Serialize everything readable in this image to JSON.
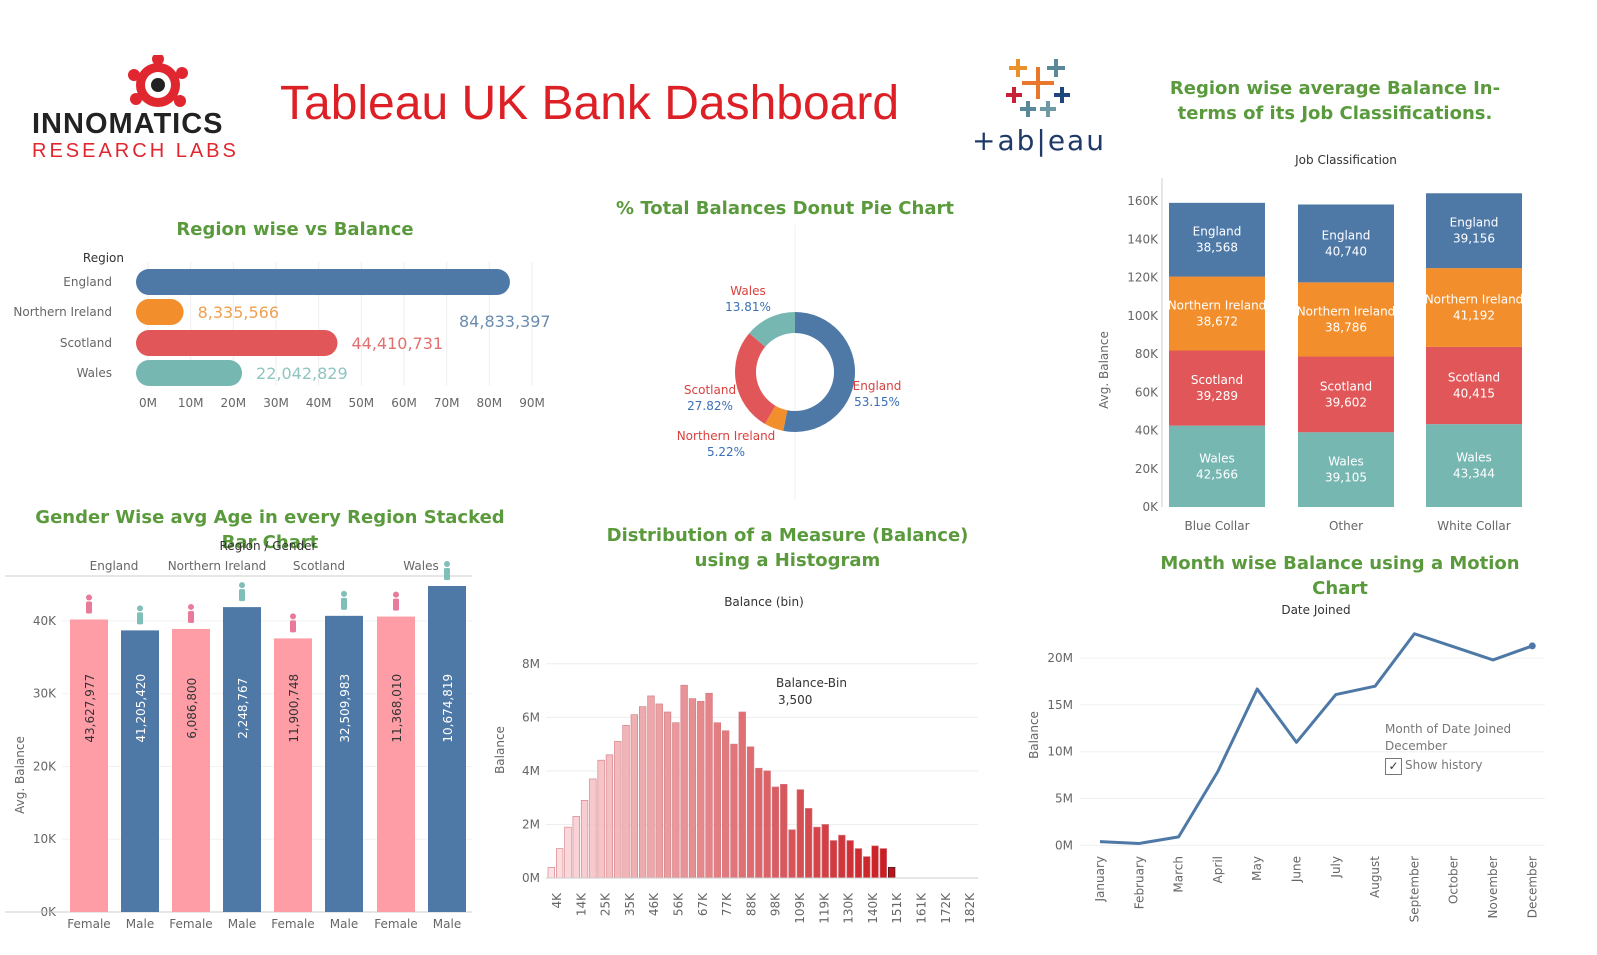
{
  "header": {
    "title": "Tableau UK Bank Dashboard",
    "logo_line1": "INNOMATICS",
    "logo_line2": "RESEARCH LABS",
    "tableau_word": "+ab|eau"
  },
  "colors": {
    "england": "#4e79a7",
    "northern_ireland": "#f28e2b",
    "scotland": "#e15759",
    "wales": "#76b7b2",
    "female": "#ff9da7",
    "title_green": "#5a9a3d",
    "title_red": "#dd1f26"
  },
  "chart_data": [
    {
      "id": "region_balance",
      "type": "bar",
      "orientation": "horizontal",
      "title": "Region wise vs Balance",
      "axis_header": "Region",
      "categories": [
        "England",
        "Northern Ireland",
        "Scotland",
        "Wales"
      ],
      "values": [
        84833397,
        8335566,
        44410731,
        22042829
      ],
      "value_labels": [
        "84,833,397",
        "8,335,566",
        "44,410,731",
        "22,042,829"
      ],
      "x_ticks": [
        "0M",
        "10M",
        "20M",
        "30M",
        "40M",
        "50M",
        "60M",
        "70M",
        "80M",
        "90M"
      ],
      "xlim": [
        0,
        90000000
      ],
      "grid": true
    },
    {
      "id": "donut",
      "type": "pie",
      "title": "% Total Balances Donut Pie Chart",
      "slices": [
        {
          "name": "England",
          "pct_label": "53.15%",
          "value": 53.15
        },
        {
          "name": "Northern Ireland",
          "pct_label": "5.22%",
          "value": 5.22
        },
        {
          "name": "Scotland",
          "pct_label": "27.82%",
          "value": 27.82
        },
        {
          "name": "Wales",
          "pct_label": "13.81%",
          "value": 13.81
        }
      ]
    },
    {
      "id": "job_class",
      "type": "bar",
      "stacked": true,
      "title": "Region wise average Balance In-terms of its Job Classifications.",
      "axis_header": "Job Classification",
      "ylabel": "Avg. Balance",
      "categories": [
        "Blue Collar",
        "Other",
        "White Collar"
      ],
      "series": [
        {
          "name": "Wales",
          "values": [
            42566,
            39105,
            43344
          ],
          "labels": [
            "42,566",
            "39,105",
            "43,344"
          ]
        },
        {
          "name": "Scotland",
          "values": [
            39289,
            39602,
            40415
          ],
          "labels": [
            "39,289",
            "39,602",
            "40,415"
          ]
        },
        {
          "name": "Northern Ireland",
          "values": [
            38672,
            38786,
            41192
          ],
          "labels": [
            "38,672",
            "38,786",
            "41,192"
          ]
        },
        {
          "name": "England",
          "values": [
            38568,
            40740,
            39156
          ],
          "labels": [
            "38,568",
            "40,740",
            "39,156"
          ]
        }
      ],
      "y_ticks": [
        "0K",
        "20K",
        "40K",
        "60K",
        "80K",
        "100K",
        "120K",
        "140K",
        "160K"
      ],
      "ylim": [
        0,
        170000
      ]
    },
    {
      "id": "gender",
      "type": "bar",
      "title": "Gender Wise avg  Age in every Region Stacked Bar Chart",
      "axis_header": "Region / Gender",
      "ylabel": "Avg. Balance",
      "regions": [
        "England",
        "Northern Ireland",
        "Scotland",
        "Wales"
      ],
      "bars": [
        {
          "region": "England",
          "gender": "Female",
          "value": 40200,
          "label": "43,627,977"
        },
        {
          "region": "England",
          "gender": "Male",
          "value": 38700,
          "label": "41,205,420"
        },
        {
          "region": "Northern Ireland",
          "gender": "Female",
          "value": 38900,
          "label": "6,086,800"
        },
        {
          "region": "Northern Ireland",
          "gender": "Male",
          "value": 41900,
          "label": "2,248,767"
        },
        {
          "region": "Scotland",
          "gender": "Female",
          "value": 37600,
          "label": "11,900,748"
        },
        {
          "region": "Scotland",
          "gender": "Male",
          "value": 40700,
          "label": "32,509,983"
        },
        {
          "region": "Wales",
          "gender": "Female",
          "value": 40600,
          "label": "11,368,010"
        },
        {
          "region": "Wales",
          "gender": "Male",
          "value": 44800,
          "label": "10,674,819"
        }
      ],
      "y_ticks": [
        "0K",
        "10K",
        "20K",
        "30K",
        "40K"
      ],
      "ylim": [
        0,
        47000
      ]
    },
    {
      "id": "histogram",
      "type": "bar",
      "title": "Distribution of a Measure (Balance) using a Histogram",
      "axis_header": "Balance (bin)",
      "ylabel": "Balance",
      "tooltip_title": "Balance-Bin",
      "tooltip_value": "3,500",
      "x_ticks": [
        "4K",
        "14K",
        "25K",
        "35K",
        "46K",
        "56K",
        "67K",
        "77K",
        "88K",
        "98K",
        "109K",
        "119K",
        "130K",
        "140K",
        "151K",
        "161K",
        "172K",
        "182K"
      ],
      "y_ticks": [
        "0M",
        "2M",
        "4M",
        "6M",
        "8M"
      ],
      "values": [
        0.4,
        1.1,
        1.9,
        2.3,
        2.9,
        3.7,
        4.4,
        4.6,
        5.1,
        5.7,
        6.1,
        6.4,
        6.8,
        6.5,
        6.2,
        5.8,
        7.2,
        6.7,
        6.6,
        6.9,
        5.8,
        5.5,
        5.0,
        6.2,
        4.9,
        4.1,
        4.0,
        3.4,
        3.5,
        1.8,
        3.3,
        2.6,
        1.9,
        2.0,
        1.4,
        1.6,
        1.4,
        1.1,
        0.8,
        1.2,
        1.1,
        0.4
      ],
      "ylim": [
        0,
        9000000
      ]
    },
    {
      "id": "month_line",
      "type": "line",
      "title": "Month wise Balance using a Motion Chart",
      "axis_header": "Date Joined",
      "ylabel": "Balance",
      "x": [
        "January",
        "February",
        "March",
        "April",
        "May",
        "June",
        "July",
        "August",
        "September",
        "October",
        "November",
        "December"
      ],
      "y": [
        0.4,
        0.2,
        0.9,
        7.9,
        16.7,
        11.0,
        16.1,
        17.0,
        22.6,
        21.2,
        19.8,
        21.3
      ],
      "y_ticks": [
        "0M",
        "5M",
        "10M",
        "15M",
        "20M"
      ],
      "ylim": [
        -0.5,
        23
      ],
      "legend_title": "Month of Date Joined",
      "legend_value": "December",
      "checkbox_label": "Show history"
    }
  ]
}
